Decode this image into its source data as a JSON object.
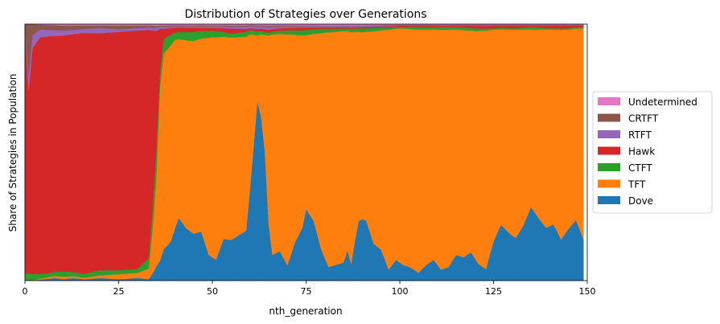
{
  "chart_data": {
    "type": "area",
    "stacked": true,
    "normalized": true,
    "title": "Distribution of Strategies over Generations",
    "xlabel": "nth_generation",
    "ylabel": "Share of Strategies in Population",
    "xlim": [
      0,
      150
    ],
    "ylim": [
      0,
      1
    ],
    "xticks": [
      0,
      25,
      50,
      75,
      100,
      125,
      150
    ],
    "grid": false,
    "legend_position": "right",
    "legend_order": [
      "Undetermined",
      "CRTFT",
      "RTFT",
      "Hawk",
      "CTFT",
      "TFT",
      "Dove"
    ],
    "series": [
      {
        "name": "Dove",
        "color": "#1f77b4"
      },
      {
        "name": "TFT",
        "color": "#ff7f0e"
      },
      {
        "name": "CTFT",
        "color": "#2ca02c"
      },
      {
        "name": "Hawk",
        "color": "#d62728"
      },
      {
        "name": "RTFT",
        "color": "#9467bd"
      },
      {
        "name": "CRTFT",
        "color": "#8c564b"
      },
      {
        "name": "Undetermined",
        "color": "#e377c2"
      }
    ],
    "keyframes": {
      "Dove": [
        [
          0,
          0
        ],
        [
          2,
          0
        ],
        [
          5,
          0.005
        ],
        [
          8,
          0.01
        ],
        [
          10,
          0.005
        ],
        [
          13,
          0.01
        ],
        [
          16,
          0.005
        ],
        [
          20,
          0.01
        ],
        [
          25,
          0.005
        ],
        [
          30,
          0.01
        ],
        [
          33,
          0.005
        ],
        [
          35,
          0.04
        ],
        [
          37,
          0.12
        ],
        [
          39,
          0.16
        ],
        [
          41,
          0.27
        ],
        [
          43,
          0.21
        ],
        [
          45,
          0.18
        ],
        [
          47,
          0.2
        ],
        [
          49,
          0.1
        ],
        [
          51,
          0.08
        ],
        [
          53,
          0.17
        ],
        [
          55,
          0.16
        ],
        [
          57,
          0.18
        ],
        [
          59,
          0.2
        ],
        [
          60,
          0.45
        ],
        [
          61,
          0.62
        ],
        [
          62,
          0.72
        ],
        [
          63,
          0.7
        ],
        [
          64,
          0.5
        ],
        [
          65,
          0.2
        ],
        [
          66,
          0.1
        ],
        [
          68,
          0.12
        ],
        [
          70,
          0.06
        ],
        [
          72,
          0.15
        ],
        [
          74,
          0.2
        ],
        [
          75,
          0.28
        ],
        [
          77,
          0.24
        ],
        [
          79,
          0.12
        ],
        [
          81,
          0.05
        ],
        [
          83,
          0.06
        ],
        [
          85,
          0.07
        ],
        [
          86,
          0.12
        ],
        [
          87,
          0.06
        ],
        [
          89,
          0.24
        ],
        [
          91,
          0.24
        ],
        [
          93,
          0.14
        ],
        [
          95,
          0.12
        ],
        [
          97,
          0.04
        ],
        [
          99,
          0.08
        ],
        [
          101,
          0.06
        ],
        [
          103,
          0.05
        ],
        [
          105,
          0.03
        ],
        [
          107,
          0.06
        ],
        [
          109,
          0.08
        ],
        [
          111,
          0.04
        ],
        [
          113,
          0.05
        ],
        [
          115,
          0.1
        ],
        [
          117,
          0.09
        ],
        [
          119,
          0.11
        ],
        [
          121,
          0.06
        ],
        [
          123,
          0.04
        ],
        [
          125,
          0.15
        ],
        [
          127,
          0.23
        ],
        [
          129,
          0.19
        ],
        [
          131,
          0.16
        ],
        [
          133,
          0.21
        ],
        [
          135,
          0.29
        ],
        [
          137,
          0.24
        ],
        [
          139,
          0.2
        ],
        [
          141,
          0.22
        ],
        [
          143,
          0.15
        ],
        [
          145,
          0.2
        ],
        [
          147,
          0.25
        ],
        [
          149,
          0.16
        ]
      ],
      "TFT": [
        [
          0,
          0
        ],
        [
          5,
          0.005
        ],
        [
          10,
          0.01
        ],
        [
          15,
          0.005
        ],
        [
          20,
          0.01
        ],
        [
          25,
          0.02
        ],
        [
          30,
          0.02
        ],
        [
          33,
          0.04
        ],
        [
          35,
          0.25
        ],
        [
          36,
          0.7
        ],
        [
          37,
          0.75
        ],
        [
          38,
          0.78
        ],
        [
          40,
          0.78
        ],
        [
          42,
          0.76
        ],
        [
          45,
          0.74
        ],
        [
          50,
          0.86
        ],
        [
          55,
          0.8
        ],
        [
          60,
          0.77
        ],
        [
          62,
          0.26
        ],
        [
          64,
          0.45
        ],
        [
          66,
          0.86
        ],
        [
          70,
          0.91
        ],
        [
          75,
          0.68
        ],
        [
          80,
          0.86
        ],
        [
          85,
          0.9
        ],
        [
          90,
          0.73
        ],
        [
          95,
          0.85
        ],
        [
          100,
          0.91
        ],
        [
          105,
          0.94
        ],
        [
          110,
          0.88
        ],
        [
          115,
          0.88
        ],
        [
          120,
          0.86
        ],
        [
          125,
          0.81
        ],
        [
          130,
          0.8
        ],
        [
          135,
          0.7
        ],
        [
          140,
          0.76
        ],
        [
          145,
          0.77
        ],
        [
          149,
          0.82
        ]
      ],
      "CTFT": [
        [
          0,
          0.03
        ],
        [
          3,
          0.02
        ],
        [
          6,
          0.015
        ],
        [
          10,
          0.02
        ],
        [
          15,
          0.015
        ],
        [
          20,
          0.02
        ],
        [
          25,
          0.015
        ],
        [
          30,
          0.015
        ],
        [
          33,
          0.04
        ],
        [
          35,
          0.08
        ],
        [
          36,
          0.06
        ],
        [
          38,
          0.05
        ],
        [
          40,
          0.03
        ],
        [
          45,
          0.035
        ],
        [
          50,
          0.025
        ],
        [
          55,
          0.015
        ],
        [
          60,
          0.02
        ],
        [
          65,
          0.01
        ],
        [
          70,
          0.015
        ],
        [
          75,
          0.02
        ],
        [
          80,
          0.015
        ],
        [
          85,
          0.01
        ],
        [
          90,
          0.015
        ],
        [
          95,
          0.01
        ],
        [
          100,
          0.005
        ],
        [
          105,
          0.01
        ],
        [
          110,
          0.01
        ],
        [
          115,
          0.01
        ],
        [
          120,
          0.01
        ],
        [
          125,
          0.005
        ],
        [
          130,
          0.005
        ],
        [
          135,
          0.01
        ],
        [
          140,
          0.005
        ],
        [
          145,
          0.005
        ],
        [
          149,
          0.005
        ]
      ],
      "Hawk": [
        [
          0,
          0.96
        ],
        [
          1,
          0.72
        ],
        [
          2,
          0.85
        ],
        [
          4,
          0.92
        ],
        [
          6,
          0.93
        ],
        [
          10,
          0.92
        ],
        [
          15,
          0.94
        ],
        [
          20,
          0.92
        ],
        [
          25,
          0.93
        ],
        [
          30,
          0.93
        ],
        [
          33,
          0.86
        ],
        [
          34,
          0.6
        ],
        [
          35,
          0.35
        ],
        [
          36,
          0.18
        ],
        [
          37,
          0.04
        ],
        [
          40,
          0.02
        ],
        [
          45,
          0.015
        ],
        [
          50,
          0.01
        ],
        [
          55,
          0.02
        ],
        [
          60,
          0.01
        ],
        [
          65,
          0.01
        ],
        [
          70,
          0.01
        ],
        [
          75,
          0.01
        ],
        [
          80,
          0.005
        ],
        [
          85,
          0.005
        ],
        [
          90,
          0.005
        ],
        [
          95,
          0.005
        ],
        [
          100,
          0.005
        ],
        [
          105,
          0.005
        ],
        [
          110,
          0.005
        ],
        [
          115,
          0.005
        ],
        [
          120,
          0.01
        ],
        [
          125,
          0.01
        ],
        [
          130,
          0.01
        ],
        [
          135,
          0.005
        ],
        [
          140,
          0.01
        ],
        [
          145,
          0.01
        ],
        [
          149,
          0.005
        ]
      ],
      "RTFT": [
        [
          0,
          0.005
        ],
        [
          1,
          0.06
        ],
        [
          2,
          0.05
        ],
        [
          4,
          0.03
        ],
        [
          6,
          0.025
        ],
        [
          10,
          0.02
        ],
        [
          15,
          0.015
        ],
        [
          20,
          0.02
        ],
        [
          25,
          0.01
        ],
        [
          30,
          0.01
        ],
        [
          35,
          0.01
        ],
        [
          40,
          0.005
        ],
        [
          50,
          0.005
        ],
        [
          60,
          0.01
        ],
        [
          65,
          0.01
        ],
        [
          70,
          0.005
        ],
        [
          80,
          0.005
        ],
        [
          90,
          0.005
        ],
        [
          100,
          0.002
        ],
        [
          110,
          0.002
        ],
        [
          120,
          0.002
        ],
        [
          130,
          0.002
        ],
        [
          140,
          0.002
        ],
        [
          149,
          0.002
        ]
      ],
      "CRTFT": [
        [
          0,
          0.005
        ],
        [
          1,
          0.2
        ],
        [
          2,
          0.04
        ],
        [
          4,
          0.02
        ],
        [
          6,
          0.02
        ],
        [
          10,
          0.02
        ],
        [
          15,
          0.015
        ],
        [
          20,
          0.01
        ],
        [
          25,
          0.015
        ],
        [
          30,
          0.01
        ],
        [
          35,
          0.005
        ],
        [
          40,
          0.005
        ],
        [
          50,
          0.005
        ],
        [
          60,
          0.005
        ],
        [
          70,
          0.005
        ],
        [
          80,
          0.002
        ],
        [
          90,
          0.002
        ],
        [
          100,
          0.002
        ],
        [
          110,
          0.002
        ],
        [
          120,
          0.002
        ],
        [
          130,
          0.002
        ],
        [
          140,
          0.002
        ],
        [
          149,
          0.002
        ]
      ],
      "Undetermined": [
        [
          0,
          0
        ],
        [
          10,
          0.005
        ],
        [
          20,
          0.005
        ],
        [
          30,
          0.005
        ],
        [
          40,
          0.005
        ],
        [
          50,
          0.005
        ],
        [
          60,
          0.005
        ],
        [
          70,
          0.005
        ],
        [
          80,
          0.005
        ],
        [
          90,
          0.005
        ],
        [
          100,
          0.002
        ],
        [
          110,
          0.002
        ],
        [
          120,
          0.002
        ],
        [
          130,
          0.002
        ],
        [
          140,
          0.002
        ],
        [
          149,
          0.002
        ]
      ]
    }
  }
}
